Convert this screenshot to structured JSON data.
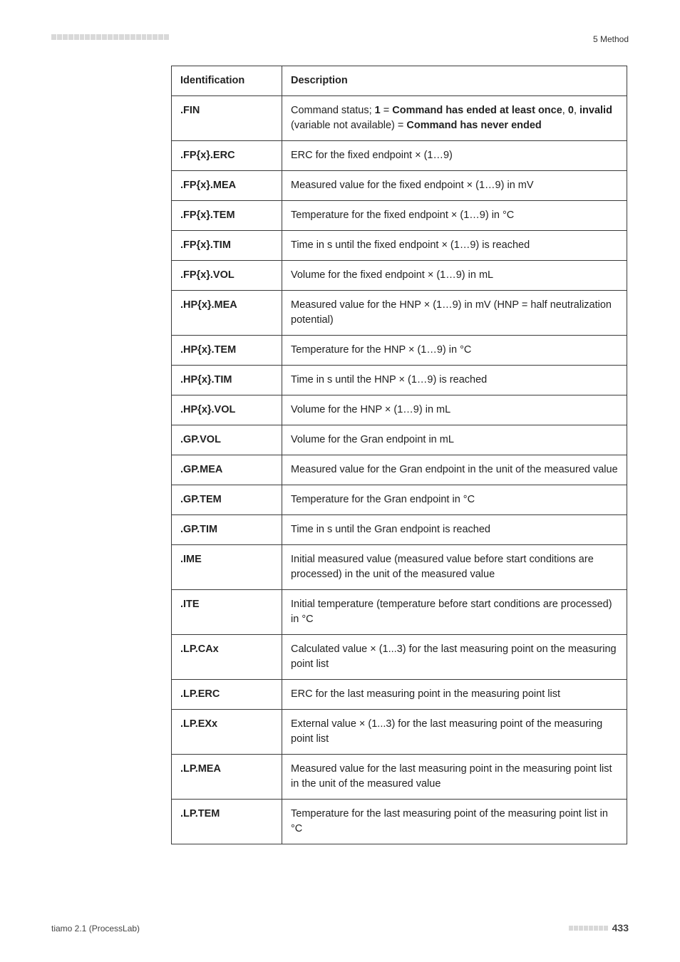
{
  "header": {
    "section": "5 Method"
  },
  "table": {
    "headers": {
      "id": "Identification",
      "desc": "Description"
    },
    "rows": [
      {
        "id": ".FIN",
        "desc_html": "Command status; <b>1</b> = <b>Command has ended at least once</b>, <b>0</b>, <b>invalid</b> (variable not available) = <b>Command has never ended</b>"
      },
      {
        "id": ".FP{x}.ERC",
        "desc_html": "ERC for the fixed endpoint × (1…9)"
      },
      {
        "id": ".FP{x}.MEA",
        "desc_html": "Measured value for the fixed endpoint × (1…9) in mV"
      },
      {
        "id": ".FP{x}.TEM",
        "desc_html": "Temperature for the fixed endpoint × (1…9) in °C"
      },
      {
        "id": ".FP{x}.TIM",
        "desc_html": "Time in s until the fixed endpoint × (1…9) is reached"
      },
      {
        "id": ".FP{x}.VOL",
        "desc_html": "Volume for the fixed endpoint × (1…9) in mL"
      },
      {
        "id": ".HP{x}.MEA",
        "desc_html": "Measured value for the HNP × (1…9) in mV (HNP = half neutralization potential)"
      },
      {
        "id": ".HP{x}.TEM",
        "desc_html": "Temperature for the HNP × (1…9) in °C"
      },
      {
        "id": ".HP{x}.TIM",
        "desc_html": "Time in s until the HNP × (1…9) is reached"
      },
      {
        "id": ".HP{x}.VOL",
        "desc_html": "Volume for the HNP × (1…9) in mL"
      },
      {
        "id": ".GP.VOL",
        "desc_html": "Volume for the Gran endpoint in mL"
      },
      {
        "id": ".GP.MEA",
        "desc_html": "Measured value for the Gran endpoint in the unit of the measured value"
      },
      {
        "id": ".GP.TEM",
        "desc_html": "Temperature for the Gran endpoint in °C"
      },
      {
        "id": ".GP.TIM",
        "desc_html": "Time in s until the Gran endpoint is reached"
      },
      {
        "id": ".IME",
        "desc_html": "Initial measured value (measured value before start conditions are processed) in the unit of the measured value"
      },
      {
        "id": ".ITE",
        "desc_html": "Initial temperature (temperature before start conditions are processed) in °C"
      },
      {
        "id": ".LP.CAx",
        "desc_html": "Calculated value × (1...3) for the last measuring point on the measuring point list"
      },
      {
        "id": ".LP.ERC",
        "desc_html": "ERC for the last measuring point in the measuring point list"
      },
      {
        "id": ".LP.EXx",
        "desc_html": "External value × (1...3) for the last measuring point of the measuring point list"
      },
      {
        "id": ".LP.MEA",
        "desc_html": "Measured value for the last measuring point in the measuring point list in the unit of the measured value"
      },
      {
        "id": ".LP.TEM",
        "desc_html": "Temperature for the last measuring point of the measuring point list in °C"
      }
    ]
  },
  "footer": {
    "left": "tiamo 2.1 (ProcessLab)",
    "page": "433"
  }
}
